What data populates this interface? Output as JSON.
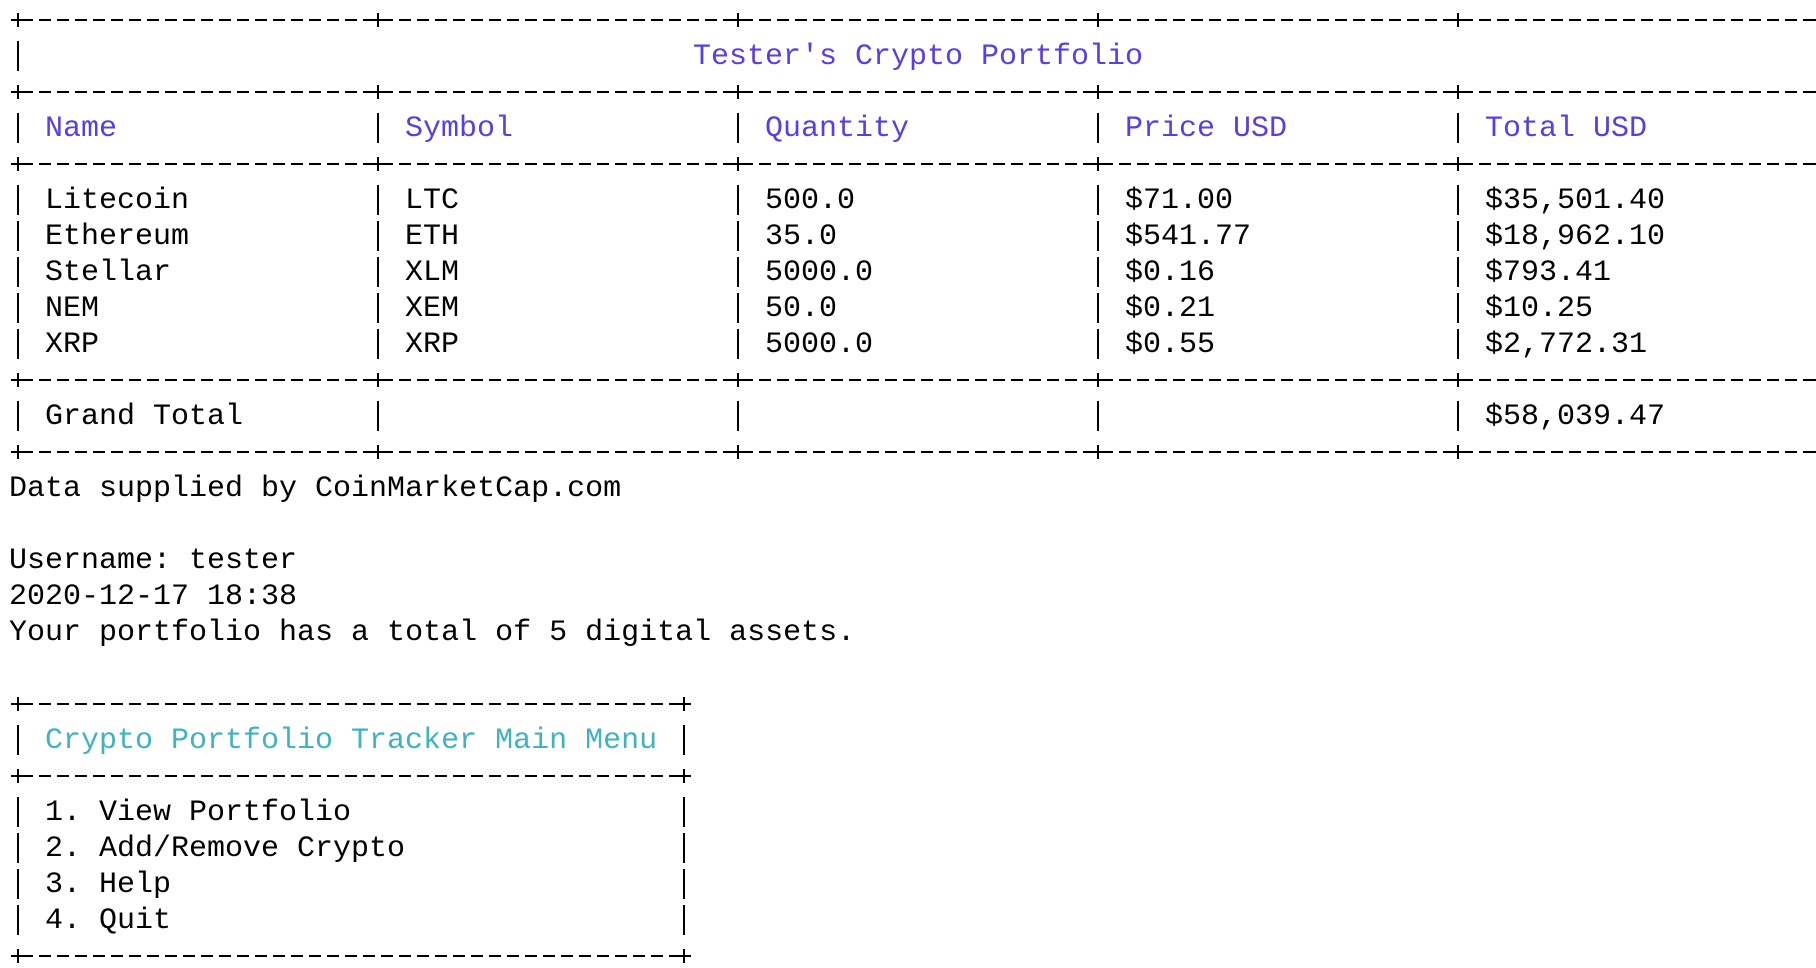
{
  "header": {
    "title": "Tester's Crypto Portfolio"
  },
  "table": {
    "columns": [
      "Name",
      "Symbol",
      "Quantity",
      "Price USD",
      "Total USD"
    ],
    "rows": [
      [
        "Litecoin",
        "LTC",
        "500.0",
        "$71.00",
        "$35,501.40"
      ],
      [
        "Ethereum",
        "ETH",
        "35.0",
        "$541.77",
        "$18,962.10"
      ],
      [
        "Stellar",
        "XLM",
        "5000.0",
        "$0.16",
        "$793.41"
      ],
      [
        "NEM",
        "XEM",
        "50.0",
        "$0.21",
        "$10.25"
      ],
      [
        "XRP",
        "XRP",
        "5000.0",
        "$0.55",
        "$2,772.31"
      ]
    ],
    "grand_total": {
      "label": "Grand Total",
      "value": "$58,039.47"
    }
  },
  "footer": {
    "source": "Data supplied by CoinMarketCap.com",
    "username": "Username: tester",
    "datetime": "2020-12-17 18:38",
    "summary": "Your portfolio has a total of 5 digital assets."
  },
  "menu": {
    "title": "Crypto Portfolio Tracker Main Menu",
    "items": [
      "1. View Portfolio",
      "2. Add/Remove Crypto",
      "3. Help",
      "4. Quit"
    ]
  }
}
